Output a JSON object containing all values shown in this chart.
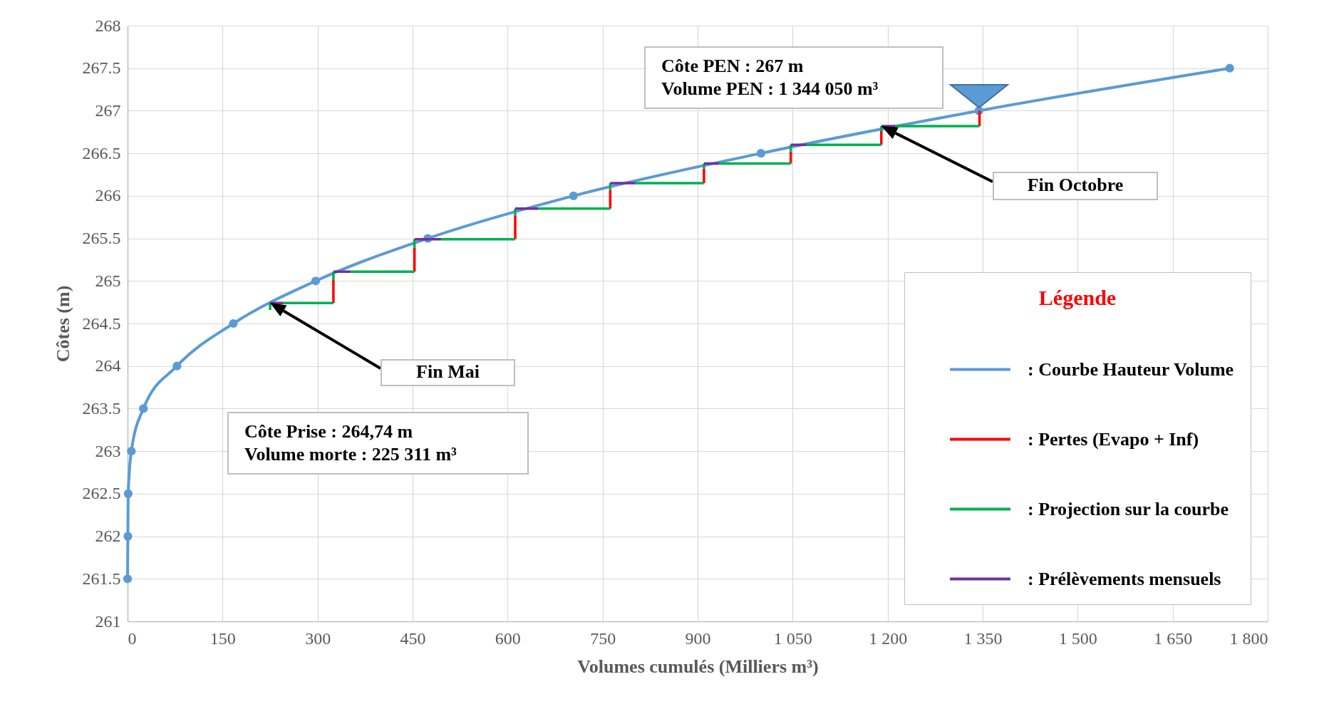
{
  "chart_data": {
    "type": "line",
    "xlabel": "Volumes cumulés (Milliers m³)",
    "ylabel": "Côtes (m)",
    "legend_title": "Légende",
    "legend": "bottom right",
    "grid": true,
    "xlim": [
      0,
      1800
    ],
    "xticks": [
      0,
      150,
      300,
      450,
      600,
      750,
      900,
      {
        "value": 1050,
        "label": "1 050"
      },
      {
        "value": 1200,
        "label": "1 200"
      },
      {
        "value": 1350,
        "label": "1 350"
      },
      {
        "value": 1500,
        "label": "1 500"
      },
      {
        "value": 1650,
        "label": "1 650"
      },
      {
        "value": 1800,
        "label": "1 800"
      }
    ],
    "ylim": [
      261,
      268
    ],
    "yticks": [
      261,
      261.5,
      262,
      262.5,
      263,
      263.5,
      264,
      264.5,
      265,
      265.5,
      266,
      266.5,
      267,
      267.5,
      268
    ],
    "series": [
      {
        "name": ": Courbe Hauteur Volume",
        "color": "#5b9bd5",
        "marker": "circle",
        "x": [
          0,
          0.5,
          1,
          6,
          25,
          78,
          167,
          297,
          474,
          704,
          1000,
          1344,
          1740
        ],
        "values": [
          261.5,
          262,
          262.5,
          263,
          263.5,
          264,
          264.5,
          265,
          265.5,
          266,
          266.5,
          267,
          267.5
        ]
      },
      {
        "name": ": Pertes (Evapo + Inf)",
        "color": "#ff0000",
        "x": [
          325,
          325,
          null,
          453,
          453,
          null,
          612,
          612,
          null,
          762,
          762,
          null,
          910,
          910,
          null,
          1047,
          1047,
          null,
          1190,
          1190,
          null,
          1345,
          1345
        ],
        "values": [
          264.74,
          265.01,
          null,
          265.11,
          265.39,
          null,
          265.49,
          265.77,
          null,
          265.85,
          266.07,
          null,
          266.15,
          266.32,
          null,
          266.38,
          266.52,
          null,
          266.6,
          266.76,
          null,
          266.82,
          267
        ]
      },
      {
        "name": ": Projection sur la courbe",
        "color": "#00b050",
        "x": [
          225,
          225,
          null,
          246,
          325,
          null,
          325,
          325,
          null,
          352,
          453,
          null,
          453,
          453,
          null,
          495,
          612,
          null,
          612,
          612,
          null,
          648,
          762,
          null,
          762,
          762,
          null,
          802,
          910,
          null,
          910,
          910,
          null,
          934,
          1047,
          null,
          1047,
          1047,
          null,
          1072,
          1190,
          null,
          1190,
          1190,
          null,
          1212,
          1345
        ],
        "values": [
          264.66,
          264.74,
          null,
          264.74,
          264.74,
          null,
          265.01,
          265.11,
          null,
          265.11,
          265.11,
          null,
          265.39,
          265.49,
          null,
          265.49,
          265.49,
          null,
          265.77,
          265.85,
          null,
          265.85,
          265.85,
          null,
          266.07,
          266.15,
          null,
          266.15,
          266.15,
          null,
          266.32,
          266.38,
          null,
          266.38,
          266.38,
          null,
          266.52,
          266.6,
          null,
          266.6,
          266.6,
          null,
          266.76,
          266.82,
          null,
          266.82,
          266.82
        ]
      },
      {
        "name": ": Prélèvements mensuels",
        "color": "#7030a0",
        "x": [
          225,
          246,
          null,
          325,
          352,
          null,
          453,
          495,
          null,
          612,
          648,
          null,
          762,
          802,
          null,
          910,
          934,
          null,
          1047,
          1072,
          null,
          1190,
          1212
        ],
        "values": [
          264.74,
          264.74,
          null,
          265.11,
          265.11,
          null,
          265.49,
          265.49,
          null,
          265.85,
          265.85,
          null,
          266.15,
          266.15,
          null,
          266.38,
          266.38,
          null,
          266.6,
          266.6,
          null,
          266.82,
          266.82
        ]
      }
    ],
    "annotations": [
      "Côte PEN : 267 m\nVolume PEN : 1 344 050 m³",
      "Côte Prise : 264,74 m\nVolume morte : 225 311 m³",
      "Fin Mai",
      "Fin Octobre"
    ]
  }
}
